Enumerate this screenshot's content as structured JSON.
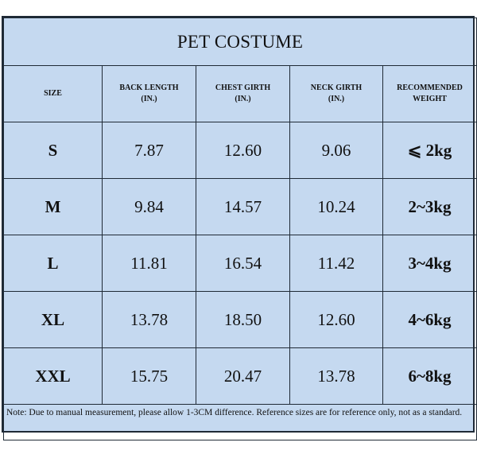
{
  "table": {
    "title": "PET COSTUME",
    "headers": [
      {
        "line1": "SIZE",
        "line2": ""
      },
      {
        "line1": "BACK LENGTH",
        "line2": "(IN.)"
      },
      {
        "line1": "CHEST GIRTH",
        "line2": "(IN.)"
      },
      {
        "line1": "NECK GIRTH",
        "line2": "(IN.)"
      },
      {
        "line1": "RECOMMENDED",
        "line2": "WEIGHT"
      }
    ],
    "rows": [
      {
        "size": "S",
        "back_length": "7.87",
        "chest_girth": "12.60",
        "neck_girth": "9.06",
        "weight": "⩽ 2kg"
      },
      {
        "size": "M",
        "back_length": "9.84",
        "chest_girth": "14.57",
        "neck_girth": "10.24",
        "weight": "2~3kg"
      },
      {
        "size": "L",
        "back_length": "11.81",
        "chest_girth": "16.54",
        "neck_girth": "11.42",
        "weight": "3~4kg"
      },
      {
        "size": "XL",
        "back_length": "13.78",
        "chest_girth": "18.50",
        "neck_girth": "12.60",
        "weight": "4~6kg"
      },
      {
        "size": "XXL",
        "back_length": "15.75",
        "chest_girth": "20.47",
        "neck_girth": "13.78",
        "weight": "6~8kg"
      }
    ],
    "note": "Note: Due to manual measurement, please allow 1-3CM difference. Reference sizes are for reference only, not as a standard."
  },
  "colors": {
    "cell_background": "#c5d9f0",
    "border": "#1f2a36",
    "text": "#111111"
  }
}
